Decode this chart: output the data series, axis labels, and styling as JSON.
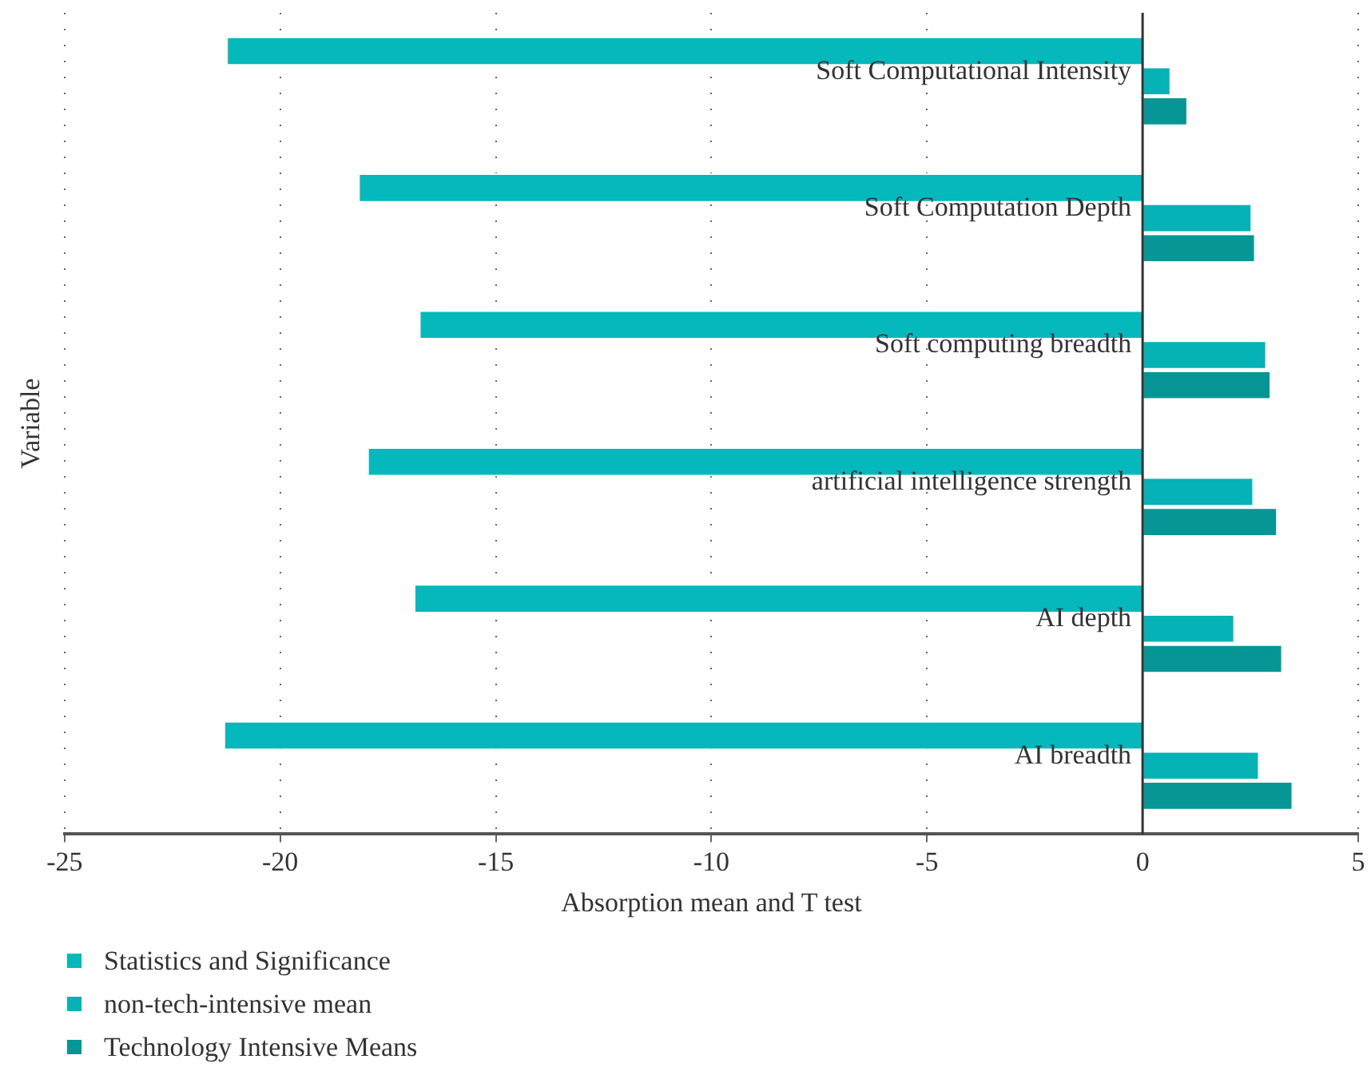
{
  "chart_data": {
    "type": "bar",
    "orientation": "horizontal",
    "xlabel": "Absorption mean and T test",
    "ylabel": "Variable",
    "categories": [
      "Soft Computational Intensity",
      "Soft Computation Depth",
      "Soft computing breadth",
      "artificial intelligence strength",
      "AI depth",
      "AI breadth"
    ],
    "series": [
      {
        "name": "Statistics and Significance",
        "color": "#05b8bb",
        "values": [
          -21.25,
          -18.19,
          -16.78,
          -17.98,
          -16.9,
          -21.31
        ]
      },
      {
        "name": "non-tech-intensive mean",
        "color": "#05b2b5",
        "values": [
          0.66,
          2.54,
          2.88,
          2.58,
          2.14,
          2.71
        ]
      },
      {
        "name": "Technology Intensive Means",
        "color": "#069695",
        "values": [
          1.05,
          2.62,
          2.98,
          3.13,
          3.25,
          3.49
        ]
      }
    ],
    "xlim": [
      -25,
      5
    ],
    "xticks": [
      -25,
      -20,
      -15,
      -10,
      -5,
      0,
      5
    ],
    "grid": "x",
    "legend": "bottom left"
  }
}
